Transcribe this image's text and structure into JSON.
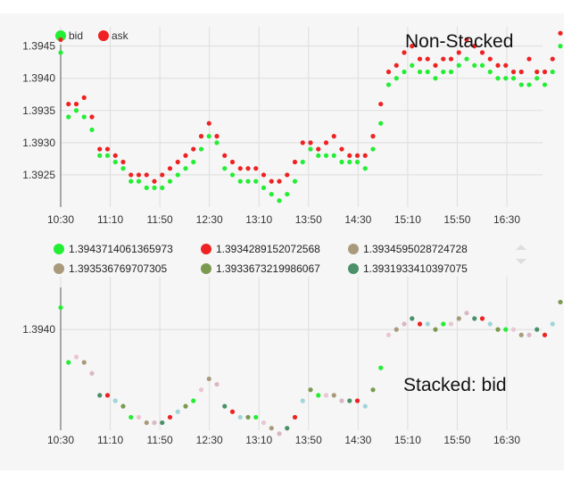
{
  "annotations": {
    "top": "Non-Stacked",
    "bottom": "Stacked: bid"
  },
  "chart_data": [
    {
      "type": "scatter",
      "title": "",
      "xlabel": "",
      "ylabel": "",
      "x_ticks": [
        "10:30",
        "11:10",
        "11:50",
        "12:30",
        "13:10",
        "13:50",
        "14:30",
        "15:10",
        "15:50",
        "16:30"
      ],
      "y_ticks": [
        "1.3925",
        "1.3930",
        "1.3935",
        "1.3940",
        "1.3945"
      ],
      "ylim": [
        1.392,
        1.3948
      ],
      "xlim_minutes_from_first_tick": [
        0,
        410
      ],
      "grid": true,
      "legend_position": "top-left",
      "series": [
        {
          "name": "bid",
          "color": "#22ee33",
          "values": [
            1.3944,
            1.3934,
            1.3935,
            1.3934,
            1.3932,
            1.3928,
            1.3928,
            1.3927,
            1.3926,
            1.3924,
            1.3924,
            1.3923,
            1.3923,
            1.3923,
            1.3924,
            1.3925,
            1.3926,
            1.3927,
            1.3929,
            1.3931,
            1.393,
            1.3926,
            1.3925,
            1.3924,
            1.3924,
            1.3924,
            1.3923,
            1.3922,
            1.3921,
            1.3922,
            1.3924,
            1.3927,
            1.3929,
            1.3928,
            1.3928,
            1.3928,
            1.3927,
            1.3927,
            1.3927,
            1.3926,
            1.3929,
            1.3933,
            1.3939,
            1.394,
            1.3941,
            1.3942,
            1.3941,
            1.3941,
            1.394,
            1.3941,
            1.3941,
            1.3942,
            1.3943,
            1.3942,
            1.3942,
            1.3941,
            1.394,
            1.394,
            1.394,
            1.3939,
            1.3939,
            1.394,
            1.3939,
            1.3941,
            1.3945
          ]
        },
        {
          "name": "ask",
          "color": "#ee2222",
          "values": [
            1.3946,
            1.3936,
            1.3936,
            1.3937,
            1.3934,
            1.3929,
            1.3929,
            1.3928,
            1.3927,
            1.3925,
            1.3925,
            1.3925,
            1.3924,
            1.3925,
            1.3926,
            1.3927,
            1.3928,
            1.3929,
            1.3931,
            1.3933,
            1.3931,
            1.3928,
            1.3927,
            1.3926,
            1.3926,
            1.3926,
            1.3925,
            1.3924,
            1.3924,
            1.3925,
            1.3927,
            1.393,
            1.393,
            1.3929,
            1.393,
            1.3931,
            1.3929,
            1.3928,
            1.3928,
            1.3928,
            1.3931,
            1.3936,
            1.3941,
            1.3942,
            1.3944,
            1.3945,
            1.3943,
            1.3943,
            1.3942,
            1.3943,
            1.3943,
            1.3944,
            1.3946,
            1.3945,
            1.3944,
            1.3943,
            1.3942,
            1.3942,
            1.3941,
            1.3941,
            1.3943,
            1.3941,
            1.3941,
            1.3943,
            1.3947
          ]
        }
      ]
    },
    {
      "type": "scatter",
      "title": "",
      "xlabel": "",
      "ylabel": "",
      "x_ticks": [
        "10:30",
        "11:10",
        "11:50",
        "12:30",
        "13:10",
        "13:50",
        "14:30",
        "15:10",
        "15:50",
        "16:30"
      ],
      "y_ticks": [
        "1.3940"
      ],
      "ylim": [
        1.392,
        1.3948
      ],
      "xlim_minutes_from_first_tick": [
        0,
        410
      ],
      "grid": true,
      "legend_position": "top",
      "series": [
        {
          "name": "1.3943714061365973",
          "color": "#22ee33"
        },
        {
          "name": "1.3934289152072568",
          "color": "#ee2222"
        },
        {
          "name": "1.3934595028724728",
          "color": "#a89a7a"
        },
        {
          "name": "1.393536769707305",
          "color": "#a89a7a"
        },
        {
          "name": "1.3933673219986067",
          "color": "#7a9a50"
        },
        {
          "name": "1.3931933410397075",
          "color": "#4a9068"
        }
      ],
      "values": [
        1.3944,
        1.3934,
        1.3935,
        1.3934,
        1.3932,
        1.3928,
        1.3928,
        1.3927,
        1.3926,
        1.3924,
        1.3924,
        1.3923,
        1.3923,
        1.3923,
        1.3924,
        1.3925,
        1.3926,
        1.3927,
        1.3929,
        1.3931,
        1.393,
        1.3926,
        1.3925,
        1.3924,
        1.3924,
        1.3924,
        1.3923,
        1.3922,
        1.3921,
        1.3922,
        1.3924,
        1.3927,
        1.3929,
        1.3928,
        1.3928,
        1.3928,
        1.3927,
        1.3927,
        1.3927,
        1.3926,
        1.3929,
        1.3933,
        1.3939,
        1.394,
        1.3941,
        1.3942,
        1.3941,
        1.3941,
        1.394,
        1.3941,
        1.3941,
        1.3942,
        1.3943,
        1.3942,
        1.3942,
        1.3941,
        1.394,
        1.394,
        1.394,
        1.3939,
        1.3939,
        1.394,
        1.3939,
        1.3941,
        1.3945
      ]
    }
  ]
}
